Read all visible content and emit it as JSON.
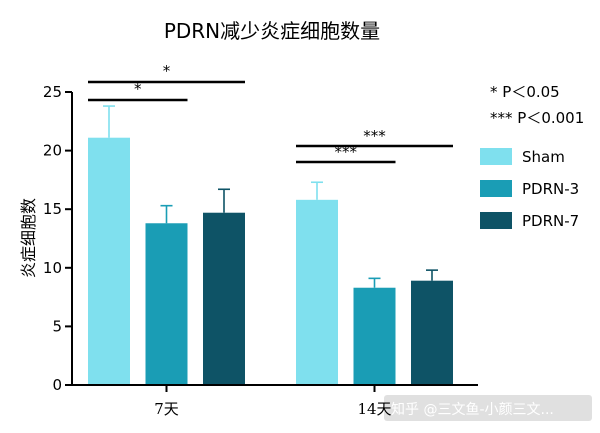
{
  "chart_data": {
    "type": "bar",
    "title": "PDRN减少炎症细胞数量",
    "ylabel": "炎症细胞数",
    "xlabel": "",
    "ylim": [
      0,
      25
    ],
    "yticks": [
      0,
      5,
      10,
      15,
      20,
      25
    ],
    "categories": [
      "7天",
      "14天"
    ],
    "series": [
      {
        "name": "Sham",
        "color": "#7fe0ee",
        "values": [
          21.1,
          15.8
        ],
        "errors": [
          2.7,
          1.5
        ]
      },
      {
        "name": "PDRN-3",
        "color": "#1a9db5",
        "values": [
          13.8,
          8.3
        ],
        "errors": [
          1.5,
          0.8
        ]
      },
      {
        "name": "PDRN-7",
        "color": "#0e5366",
        "values": [
          14.7,
          8.9
        ],
        "errors": [
          2.0,
          0.9
        ]
      }
    ],
    "significance": [
      {
        "category": 0,
        "from": 0,
        "to": 1,
        "label": "*"
      },
      {
        "category": 0,
        "from": 0,
        "to": 2,
        "label": "*"
      },
      {
        "category": 1,
        "from": 0,
        "to": 1,
        "label": "***"
      },
      {
        "category": 1,
        "from": 0,
        "to": 2,
        "label": "***"
      }
    ],
    "notes": [
      "* P＜0.05",
      "*** P＜0.001"
    ],
    "legend_position": "right",
    "grid": false
  },
  "watermark": "知乎 @三文鱼-小颜三文..."
}
